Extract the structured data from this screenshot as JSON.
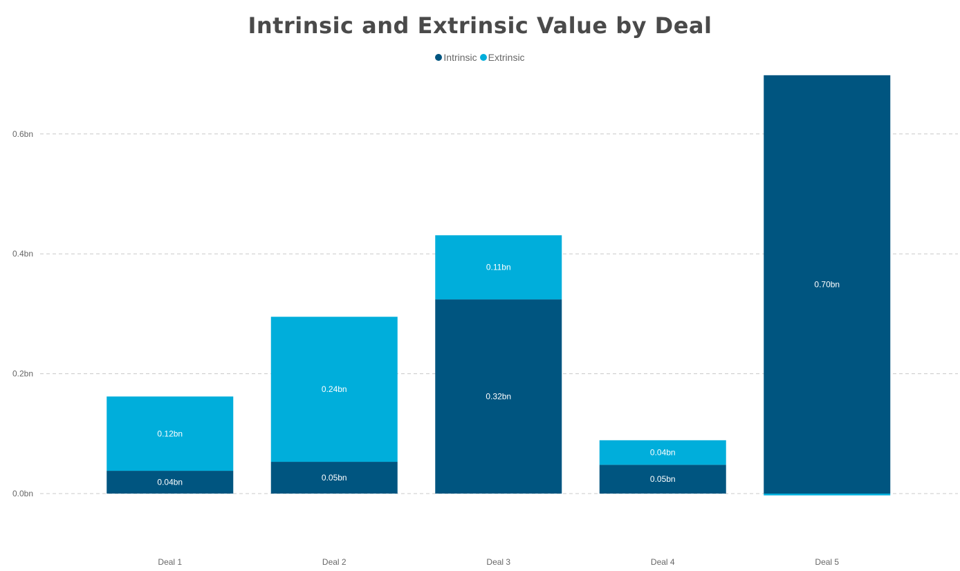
{
  "chart_data": {
    "type": "bar",
    "stacked": true,
    "title": "Intrinsic and Extrinsic Value by Deal",
    "categories": [
      "Deal 1",
      "Deal 2",
      "Deal 3",
      "Deal 4",
      "Deal 5"
    ],
    "series": [
      {
        "name": "Intrinsic",
        "color": "#005580",
        "values": [
          0.038,
          0.053,
          0.324,
          0.048,
          0.698
        ],
        "labels": [
          "0.04bn",
          "0.05bn",
          "0.32bn",
          "0.05bn",
          "0.70bn"
        ]
      },
      {
        "name": "Extrinsic",
        "color": "#00aedb",
        "values": [
          0.124,
          0.242,
          0.107,
          0.041,
          -0.003
        ],
        "labels": [
          "0.12bn",
          "0.24bn",
          "0.11bn",
          "0.04bn",
          ""
        ]
      }
    ],
    "y_ticks": [
      {
        "value": 0.0,
        "label": "0.0bn"
      },
      {
        "value": 0.2,
        "label": "0.2bn"
      },
      {
        "value": 0.4,
        "label": "0.4bn"
      },
      {
        "value": 0.6,
        "label": "0.6bn"
      }
    ],
    "xlabel": "",
    "ylabel": "",
    "ylim": [
      -0.075,
      0.7
    ],
    "grid": true,
    "legend_position": "top-center"
  }
}
